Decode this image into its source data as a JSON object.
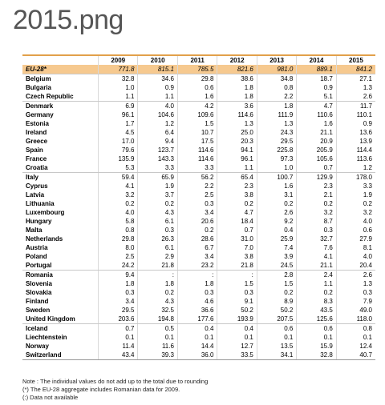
{
  "header": {
    "title": "2015.png"
  },
  "table": {
    "columns": [
      "2009",
      "2010",
      "2011",
      "2012",
      "2013",
      "2014",
      "2015"
    ],
    "rows": [
      [
        "EU-28*",
        "771.8",
        "815.1",
        "785.5",
        "821.6",
        "981.0",
        "889.1",
        "841.2"
      ],
      [
        "Belgium",
        "32.8",
        "34.6",
        "29.8",
        "38.6",
        "34.8",
        "18.7",
        "27.1"
      ],
      [
        "Bulgaria",
        "1.0",
        "0.9",
        "0.6",
        "1.8",
        "0.8",
        "0.9",
        "1.3"
      ],
      [
        "Czech Republic",
        "1.1",
        "1.1",
        "1.6",
        "1.8",
        "2.2",
        "5.1",
        "2.6"
      ],
      [
        "Denmark",
        "6.9",
        "4.0",
        "4.2",
        "3.6",
        "1.8",
        "4.7",
        "11.7"
      ],
      [
        "Germany",
        "96.1",
        "104.6",
        "109.6",
        "114.6",
        "111.9",
        "110.6",
        "110.1"
      ],
      [
        "Estonia",
        "1.7",
        "1.2",
        "1.5",
        "1.3",
        "1.3",
        "1.6",
        "0.9"
      ],
      [
        "Ireland",
        "4.5",
        "6.4",
        "10.7",
        "25.0",
        "24.3",
        "21.1",
        "13.6"
      ],
      [
        "Greece",
        "17.0",
        "9.4",
        "17.5",
        "20.3",
        "29.5",
        "20.9",
        "13.9"
      ],
      [
        "Spain",
        "79.6",
        "123.7",
        "114.6",
        "94.1",
        "225.8",
        "205.9",
        "114.4"
      ],
      [
        "France",
        "135.9",
        "143.3",
        "114.6",
        "96.1",
        "97.3",
        "105.6",
        "113.6"
      ],
      [
        "Croatia",
        "5.3",
        "3.3",
        "3.3",
        "1.1",
        "1.0",
        "0.7",
        "1.2"
      ],
      [
        "Italy",
        "59.4",
        "65.9",
        "56.2",
        "65.4",
        "100.7",
        "129.9",
        "178.0"
      ],
      [
        "Cyprus",
        "4.1",
        "1.9",
        "2.2",
        "2.3",
        "1.6",
        "2.3",
        "3.3"
      ],
      [
        "Latvia",
        "3.2",
        "3.7",
        "2.5",
        "3.8",
        "3.1",
        "2.1",
        "1.9"
      ],
      [
        "Lithuania",
        "0.2",
        "0.2",
        "0.3",
        "0.2",
        "0.2",
        "0.2",
        "0.2"
      ],
      [
        "Luxembourg",
        "4.0",
        "4.3",
        "3.4",
        "4.7",
        "2.6",
        "3.2",
        "3.2"
      ],
      [
        "Hungary",
        "5.8",
        "6.1",
        "20.6",
        "18.4",
        "9.2",
        "8.7",
        "4.0"
      ],
      [
        "Malta",
        "0.8",
        "0.3",
        "0.2",
        "0.7",
        "0.4",
        "0.3",
        "0.6"
      ],
      [
        "Netherlands",
        "29.8",
        "26.3",
        "28.6",
        "31.0",
        "25.9",
        "32.7",
        "27.9"
      ],
      [
        "Austria",
        "8.0",
        "6.1",
        "6.7",
        "7.0",
        "7.4",
        "7.6",
        "8.1"
      ],
      [
        "Poland",
        "2.5",
        "2.9",
        "3.4",
        "3.8",
        "3.9",
        "4.1",
        "4.0"
      ],
      [
        "Portugal",
        "24.2",
        "21.8",
        "23.2",
        "21.8",
        "24.5",
        "21.1",
        "20.4"
      ],
      [
        "Romania",
        "9.4",
        ":",
        ":",
        ":",
        "2.8",
        "2.4",
        "2.6"
      ],
      [
        "Slovenia",
        "1.8",
        "1.8",
        "1.8",
        "1.5",
        "1.5",
        "1.1",
        "1.3"
      ],
      [
        "Slovakia",
        "0.3",
        "0.2",
        "0.3",
        "0.3",
        "0.2",
        "0.2",
        "0.3"
      ],
      [
        "Finland",
        "3.4",
        "4.3",
        "4.6",
        "9.1",
        "8.9",
        "8.3",
        "7.9"
      ],
      [
        "Sweden",
        "29.5",
        "32.5",
        "36.6",
        "50.2",
        "50.2",
        "43.5",
        "49.0"
      ],
      [
        "United Kingdom",
        "203.6",
        "194.8",
        "177.6",
        "193.9",
        "207.5",
        "125.6",
        "118.0"
      ],
      [
        "Iceland",
        "0.7",
        "0.5",
        "0.4",
        "0.4",
        "0.6",
        "0.6",
        "0.8"
      ],
      [
        "Liechtenstein",
        "0.1",
        "0.1",
        "0.1",
        "0.1",
        "0.1",
        "0.1",
        "0.1"
      ],
      [
        "Norway",
        "11.4",
        "11.6",
        "14.4",
        "12.7",
        "13.5",
        "15.9",
        "12.4"
      ],
      [
        "Switzerland",
        "43.4",
        "39.3",
        "36.0",
        "33.5",
        "34.1",
        "32.8",
        "40.7"
      ]
    ]
  },
  "notes": [
    "Note : The individual values do not add up to the total due to rounding",
    "(*) The EU-28 aggregate includes Romanian data for 2009.",
    "(:) Data not available"
  ]
}
